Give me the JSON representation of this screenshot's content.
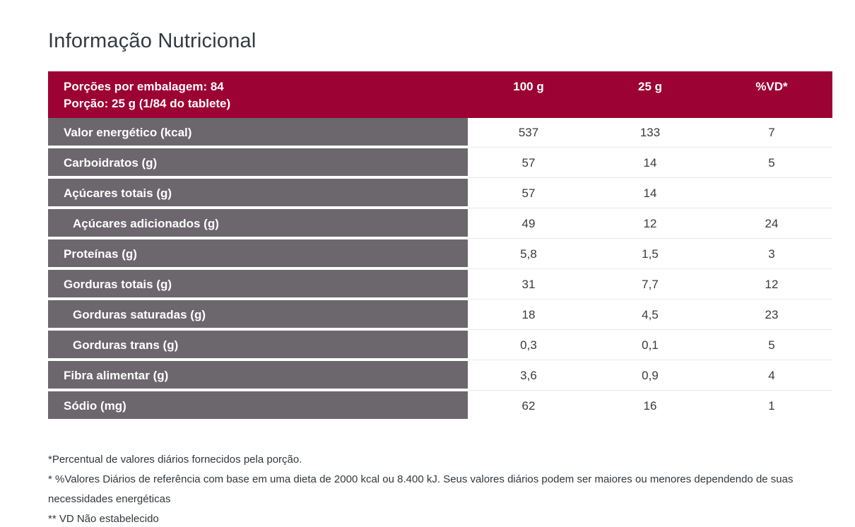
{
  "page": {
    "title": "Informação Nutricional"
  },
  "table": {
    "header": {
      "servings_line": "Porções por embalagem: 84",
      "portion_line": "Porção: 25 g (1/84 do tablete)",
      "columns": [
        "100 g",
        "25 g",
        "%VD*"
      ]
    },
    "rows": [
      {
        "label": "Valor energético (kcal)",
        "indent": false,
        "per100g": "537",
        "per25g": "133",
        "vd": "7"
      },
      {
        "label": "Carboidratos (g)",
        "indent": false,
        "per100g": "57",
        "per25g": "14",
        "vd": "5"
      },
      {
        "label": "Açúcares totais (g)",
        "indent": false,
        "per100g": "57",
        "per25g": "14",
        "vd": ""
      },
      {
        "label": "Açúcares adicionados (g)",
        "indent": true,
        "per100g": "49",
        "per25g": "12",
        "vd": "24"
      },
      {
        "label": "Proteínas (g)",
        "indent": false,
        "per100g": "5,8",
        "per25g": "1,5",
        "vd": "3"
      },
      {
        "label": "Gorduras totais (g)",
        "indent": false,
        "per100g": "31",
        "per25g": "7,7",
        "vd": "12"
      },
      {
        "label": "Gorduras saturadas (g)",
        "indent": true,
        "per100g": "18",
        "per25g": "4,5",
        "vd": "23"
      },
      {
        "label": "Gorduras trans (g)",
        "indent": true,
        "per100g": "0,3",
        "per25g": "0,1",
        "vd": "5"
      },
      {
        "label": "Fibra alimentar (g)",
        "indent": false,
        "per100g": "3,6",
        "per25g": "0,9",
        "vd": "4"
      },
      {
        "label": "Sódio (mg)",
        "indent": false,
        "per100g": "62",
        "per25g": "16",
        "vd": "1"
      }
    ]
  },
  "footnotes": [
    "*Percentual de valores diários fornecidos pela porção.",
    "* %Valores Diários de referência com base em uma dieta de 2000 kcal ou 8.400 kJ. Seus valores diários podem ser maiores ou menores dependendo de suas necessidades energéticas",
    "** VD Não estabelecido"
  ],
  "colors": {
    "header_bg": "#9C0233",
    "label_bg": "#6B676C",
    "divider": "#E9E9E9",
    "title_color": "#343A40",
    "value_color": "#3A3A3A"
  }
}
